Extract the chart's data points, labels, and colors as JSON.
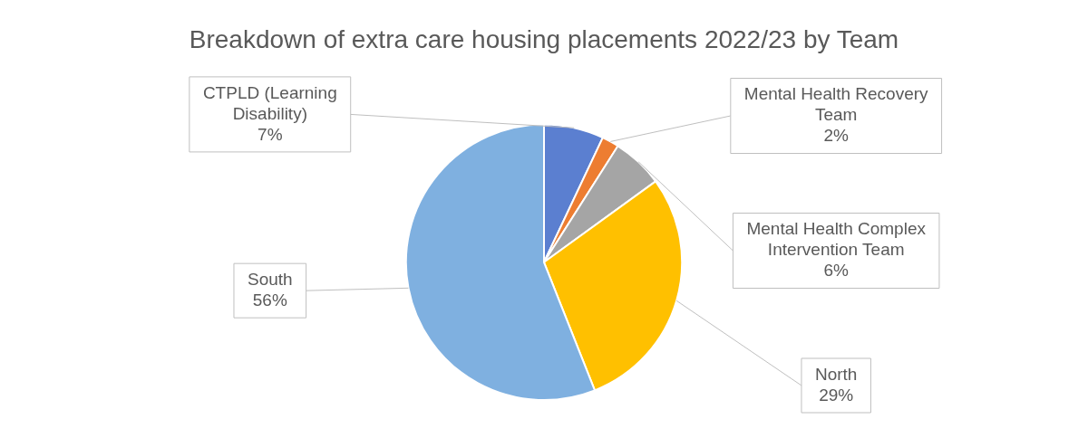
{
  "chart_data": {
    "type": "pie",
    "title": "Breakdown of extra care housing placements 2022/23 by Team",
    "categories": [
      "CTPLD (Learning Disability)",
      "Mental Health Recovery Team",
      "Mental Health Complex Intervention Team",
      "North",
      "South"
    ],
    "values": [
      7,
      2,
      6,
      29,
      56
    ],
    "colors": [
      "#5b7fd0",
      "#ed7d31",
      "#a5a5a5",
      "#ffc000",
      "#7fb0e0"
    ],
    "value_labels": [
      "7%",
      "2%",
      "6%",
      "29%",
      "56%"
    ],
    "legend": false
  }
}
